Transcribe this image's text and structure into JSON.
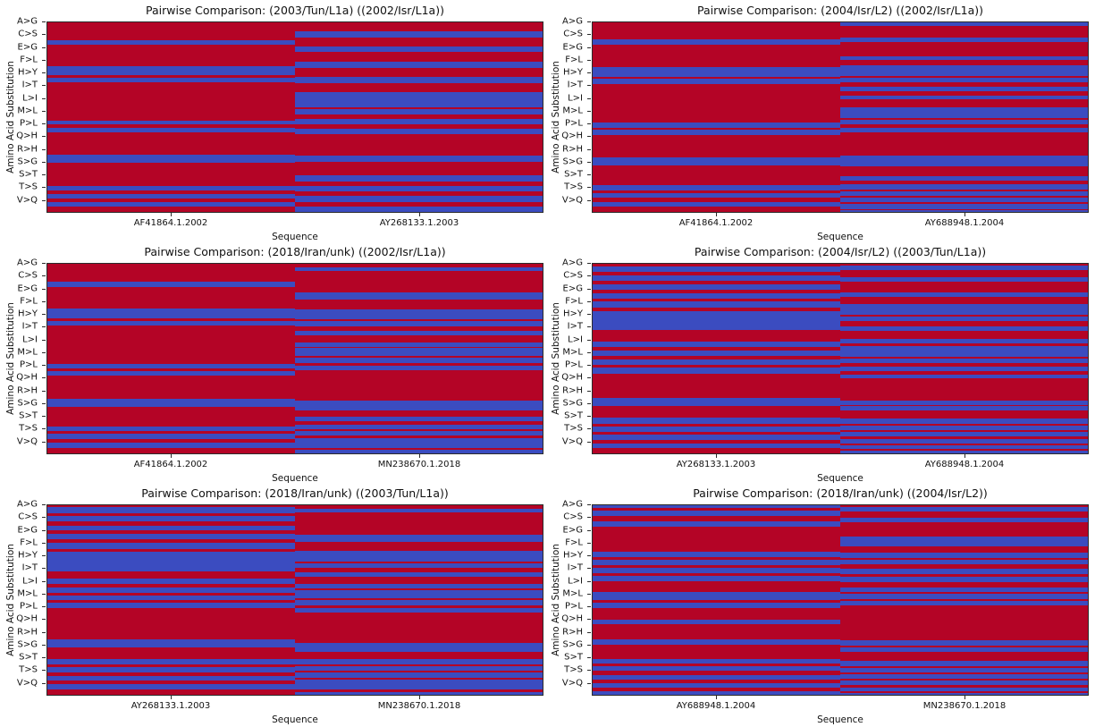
{
  "figure": {
    "background": "#ffffff",
    "text_color": "#111111"
  },
  "chart_data": {
    "type": "heatmap",
    "layout": {
      "rows": 3,
      "cols": 2
    },
    "xlabel": "Sequence",
    "ylabel": "Amino Acid Substitution",
    "y_tick_labels": [
      "A>G",
      "C>S",
      "E>G",
      "F>L",
      "H>Y",
      "I>T",
      "L>I",
      "M>L",
      "P>L",
      "Q>H",
      "R>H",
      "S>G",
      "S>T",
      "T>S",
      "V>Q"
    ],
    "colors": {
      "red_cell": "#b40426",
      "blue_cell": "#3b4cc0"
    },
    "plots": [
      {
        "title": "Pairwise Comparison: (2003/Tun/L1a) ((2002/Isr/L1a))",
        "x_tick_labels": [
          "AF41864.1.2002",
          "AY268133.1.2003"
        ],
        "columns": [
          {
            "sequence": "AF41864.1.2002",
            "blue_stripes_pct": [
              [
                9.2,
                2.5
              ],
              [
                22.9,
                4.9
              ],
              [
                29.1,
                2.5
              ],
              [
                51.7,
                2.3
              ],
              [
                55.7,
                2.4
              ],
              [
                69.7,
                4.2
              ],
              [
                86.2,
                2.4
              ],
              [
                90.5,
                2.6
              ],
              [
                94.8,
                2.6
              ]
            ]
          },
          {
            "sequence": "AY268133.1.2003",
            "blue_stripes_pct": [
              [
                4.8,
                3.0
              ],
              [
                12.8,
                3.0
              ],
              [
                20.8,
                3.2
              ],
              [
                28.7,
                3.2
              ],
              [
                37.0,
                7.8
              ],
              [
                45.7,
                3.0
              ],
              [
                50.8,
                3.0
              ],
              [
                55.9,
                3.0
              ],
              [
                70.4,
                3.2
              ],
              [
                80.8,
                3.2
              ],
              [
                86.1,
                3.2
              ],
              [
                91.4,
                3.2
              ],
              [
                97.0,
                3.0
              ]
            ]
          }
        ]
      },
      {
        "title": "Pairwise Comparison: (2004/Isr/L2) ((2002/Isr/L1a))",
        "x_tick_labels": [
          "AF41864.1.2002",
          "AY688948.1.2004"
        ],
        "columns": [
          {
            "sequence": "AF41864.1.2002",
            "blue_stripes_pct": [
              [
                9.1,
                2.6
              ],
              [
                23.7,
                5.1
              ],
              [
                29.8,
                2.6
              ],
              [
                52.8,
                2.8
              ],
              [
                56.6,
                2.8
              ],
              [
                71.2,
                4.1
              ],
              [
                85.7,
                2.8
              ],
              [
                90.0,
                2.6
              ],
              [
                94.6,
                2.6
              ]
            ]
          },
          {
            "sequence": "AY688948.1.2004",
            "blue_stripes_pct": [
              [
                0.2,
                1.8
              ],
              [
                8.2,
                2.2
              ],
              [
                17.7,
                2.2
              ],
              [
                22.8,
                5.4
              ],
              [
                29.3,
                2.3
              ],
              [
                33.9,
                2.3
              ],
              [
                38.5,
                2.3
              ],
              [
                44.7,
                5.7
              ],
              [
                51.4,
                2.5
              ],
              [
                55.7,
                2.4
              ],
              [
                70.3,
                5.7
              ],
              [
                81.0,
                2.4
              ],
              [
                85.2,
                2.8
              ],
              [
                89.0,
                2.4
              ],
              [
                92.5,
                2.4
              ],
              [
                95.9,
                2.5
              ],
              [
                99.2,
                0.8
              ]
            ]
          }
        ]
      },
      {
        "title": "Pairwise Comparison: (2018/Iran/unk) ((2002/Isr/L1a))",
        "x_tick_labels": [
          "AF41864.1.2002",
          "MN238670.1.2018"
        ],
        "columns": [
          {
            "sequence": "AF41864.1.2002",
            "blue_stripes_pct": [
              [
                9.3,
                3.0
              ],
              [
                23.4,
                5.5
              ],
              [
                30.0,
                2.6
              ],
              [
                52.6,
                2.8
              ],
              [
                56.4,
                2.8
              ],
              [
                71.0,
                4.3
              ],
              [
                85.7,
                2.6
              ],
              [
                89.8,
                2.6
              ],
              [
                94.4,
                2.6
              ]
            ]
          },
          {
            "sequence": "MN238670.1.2018",
            "blue_stripes_pct": [
              [
                1.8,
                2.0
              ],
              [
                15.3,
                3.4
              ],
              [
                24.0,
                5.4
              ],
              [
                30.3,
                2.5
              ],
              [
                35.3,
                2.3
              ],
              [
                41.4,
                2.3
              ],
              [
                44.5,
                4.1
              ],
              [
                49.7,
                2.5
              ],
              [
                53.7,
                2.3
              ],
              [
                72.3,
                4.9
              ],
              [
                80.8,
                2.4
              ],
              [
                84.9,
                2.5
              ],
              [
                88.4,
                2.4
              ],
              [
                92.0,
                5.2
              ],
              [
                98.1,
                1.9
              ]
            ]
          }
        ]
      },
      {
        "title": "Pairwise Comparison: (2004/Isr/L2) ((2003/Tun/L1a))",
        "x_tick_labels": [
          "AY268133.1.2003",
          "AY688948.1.2004"
        ],
        "columns": [
          {
            "sequence": "AY268133.1.2003",
            "blue_stripes_pct": [
              [
                1.2,
                3.0
              ],
              [
                6.2,
                2.8
              ],
              [
                10.8,
                3.0
              ],
              [
                15.6,
                2.8
              ],
              [
                20.0,
                3.3
              ],
              [
                24.8,
                10.1
              ],
              [
                41.1,
                3.0
              ],
              [
                45.7,
                3.0
              ],
              [
                50.3,
                3.0
              ],
              [
                54.9,
                3.0
              ],
              [
                70.8,
                4.3
              ],
              [
                81.2,
                3.3
              ],
              [
                85.9,
                2.8
              ],
              [
                90.1,
                2.6
              ],
              [
                94.7,
                2.6
              ]
            ]
          },
          {
            "sequence": "AY688948.1.2004",
            "blue_stripes_pct": [
              [
                1.1,
                2.0
              ],
              [
                7.2,
                2.1
              ],
              [
                15.3,
                2.3
              ],
              [
                21.0,
                5.7
              ],
              [
                27.6,
                2.6
              ],
              [
                32.8,
                2.5
              ],
              [
                39.4,
                2.6
              ],
              [
                43.5,
                5.5
              ],
              [
                50.1,
                2.4
              ],
              [
                54.3,
                2.5
              ],
              [
                58.3,
                2.3
              ],
              [
                72.0,
                2.3
              ],
              [
                75.1,
                2.3
              ],
              [
                81.8,
                2.5
              ],
              [
                85.4,
                2.4
              ],
              [
                88.9,
                2.3
              ],
              [
                92.3,
                2.4
              ],
              [
                95.6,
                2.1
              ],
              [
                98.7,
                1.3
              ]
            ]
          }
        ]
      },
      {
        "title": "Pairwise Comparison: (2018/Iran/unk) ((2003/Tun/L1a))",
        "x_tick_labels": [
          "AY268133.1.2003",
          "MN238670.1.2018"
        ],
        "columns": [
          {
            "sequence": "AY268133.1.2003",
            "blue_stripes_pct": [
              [
                1.1,
                3.0
              ],
              [
                5.7,
                2.6
              ],
              [
                10.7,
                2.6
              ],
              [
                15.3,
                2.6
              ],
              [
                19.6,
                3.4
              ],
              [
                24.7,
                10.0
              ],
              [
                38.9,
                2.6
              ],
              [
                43.2,
                2.8
              ],
              [
                47.5,
                2.6
              ],
              [
                51.6,
                2.6
              ],
              [
                70.7,
                4.3
              ],
              [
                81.1,
                3.0
              ],
              [
                85.3,
                3.0
              ],
              [
                89.9,
                2.6
              ],
              [
                94.5,
                2.6
              ]
            ]
          },
          {
            "sequence": "MN238670.1.2018",
            "blue_stripes_pct": [
              [
                2.0,
                1.9
              ],
              [
                15.8,
                3.4
              ],
              [
                24.0,
                5.5
              ],
              [
                30.7,
                2.4
              ],
              [
                35.3,
                2.4
              ],
              [
                41.4,
                2.4
              ],
              [
                44.9,
                4.1
              ],
              [
                50.1,
                2.5
              ],
              [
                54.1,
                2.3
              ],
              [
                72.8,
                4.6
              ],
              [
                81.2,
                2.6
              ],
              [
                84.7,
                2.6
              ],
              [
                88.4,
                2.5
              ],
              [
                92.0,
                5.4
              ],
              [
                98.4,
                1.6
              ]
            ]
          }
        ]
      },
      {
        "title": "Pairwise Comparison: (2018/Iran/unk) ((2004/Isr/L2))",
        "x_tick_labels": [
          "AY688948.1.2004",
          "MN238670.1.2018"
        ],
        "columns": [
          {
            "sequence": "AY688948.1.2004",
            "blue_stripes_pct": [
              [
                0.0,
                1.6
              ],
              [
                3.0,
                2.6
              ],
              [
                8.6,
                2.6
              ],
              [
                24.4,
                3.1
              ],
              [
                29.0,
                2.6
              ],
              [
                33.1,
                2.6
              ],
              [
                37.3,
                2.8
              ],
              [
                45.8,
                4.1
              ],
              [
                51.6,
                2.6
              ],
              [
                60.4,
                2.5
              ],
              [
                70.7,
                2.9
              ],
              [
                81.1,
                2.5
              ],
              [
                84.8,
                2.5
              ],
              [
                89.4,
                2.6
              ],
              [
                93.8,
                2.6
              ],
              [
                98.0,
                2.0
              ]
            ]
          },
          {
            "sequence": "MN238670.1.2018",
            "blue_stripes_pct": [
              [
                1.1,
                2.0
              ],
              [
                6.6,
                2.2
              ],
              [
                16.4,
                5.5
              ],
              [
                25.0,
                2.6
              ],
              [
                28.6,
                2.5
              ],
              [
                33.7,
                2.4
              ],
              [
                37.9,
                2.5
              ],
              [
                43.4,
                2.3
              ],
              [
                46.8,
                2.8
              ],
              [
                50.6,
                2.4
              ],
              [
                71.0,
                3.1
              ],
              [
                75.1,
                2.4
              ],
              [
                82.3,
                2.5
              ],
              [
                85.8,
                2.4
              ],
              [
                89.3,
                2.3
              ],
              [
                92.4,
                2.6
              ],
              [
                96.1,
                2.1
              ],
              [
                99.0,
                1.0
              ]
            ]
          }
        ]
      }
    ]
  }
}
